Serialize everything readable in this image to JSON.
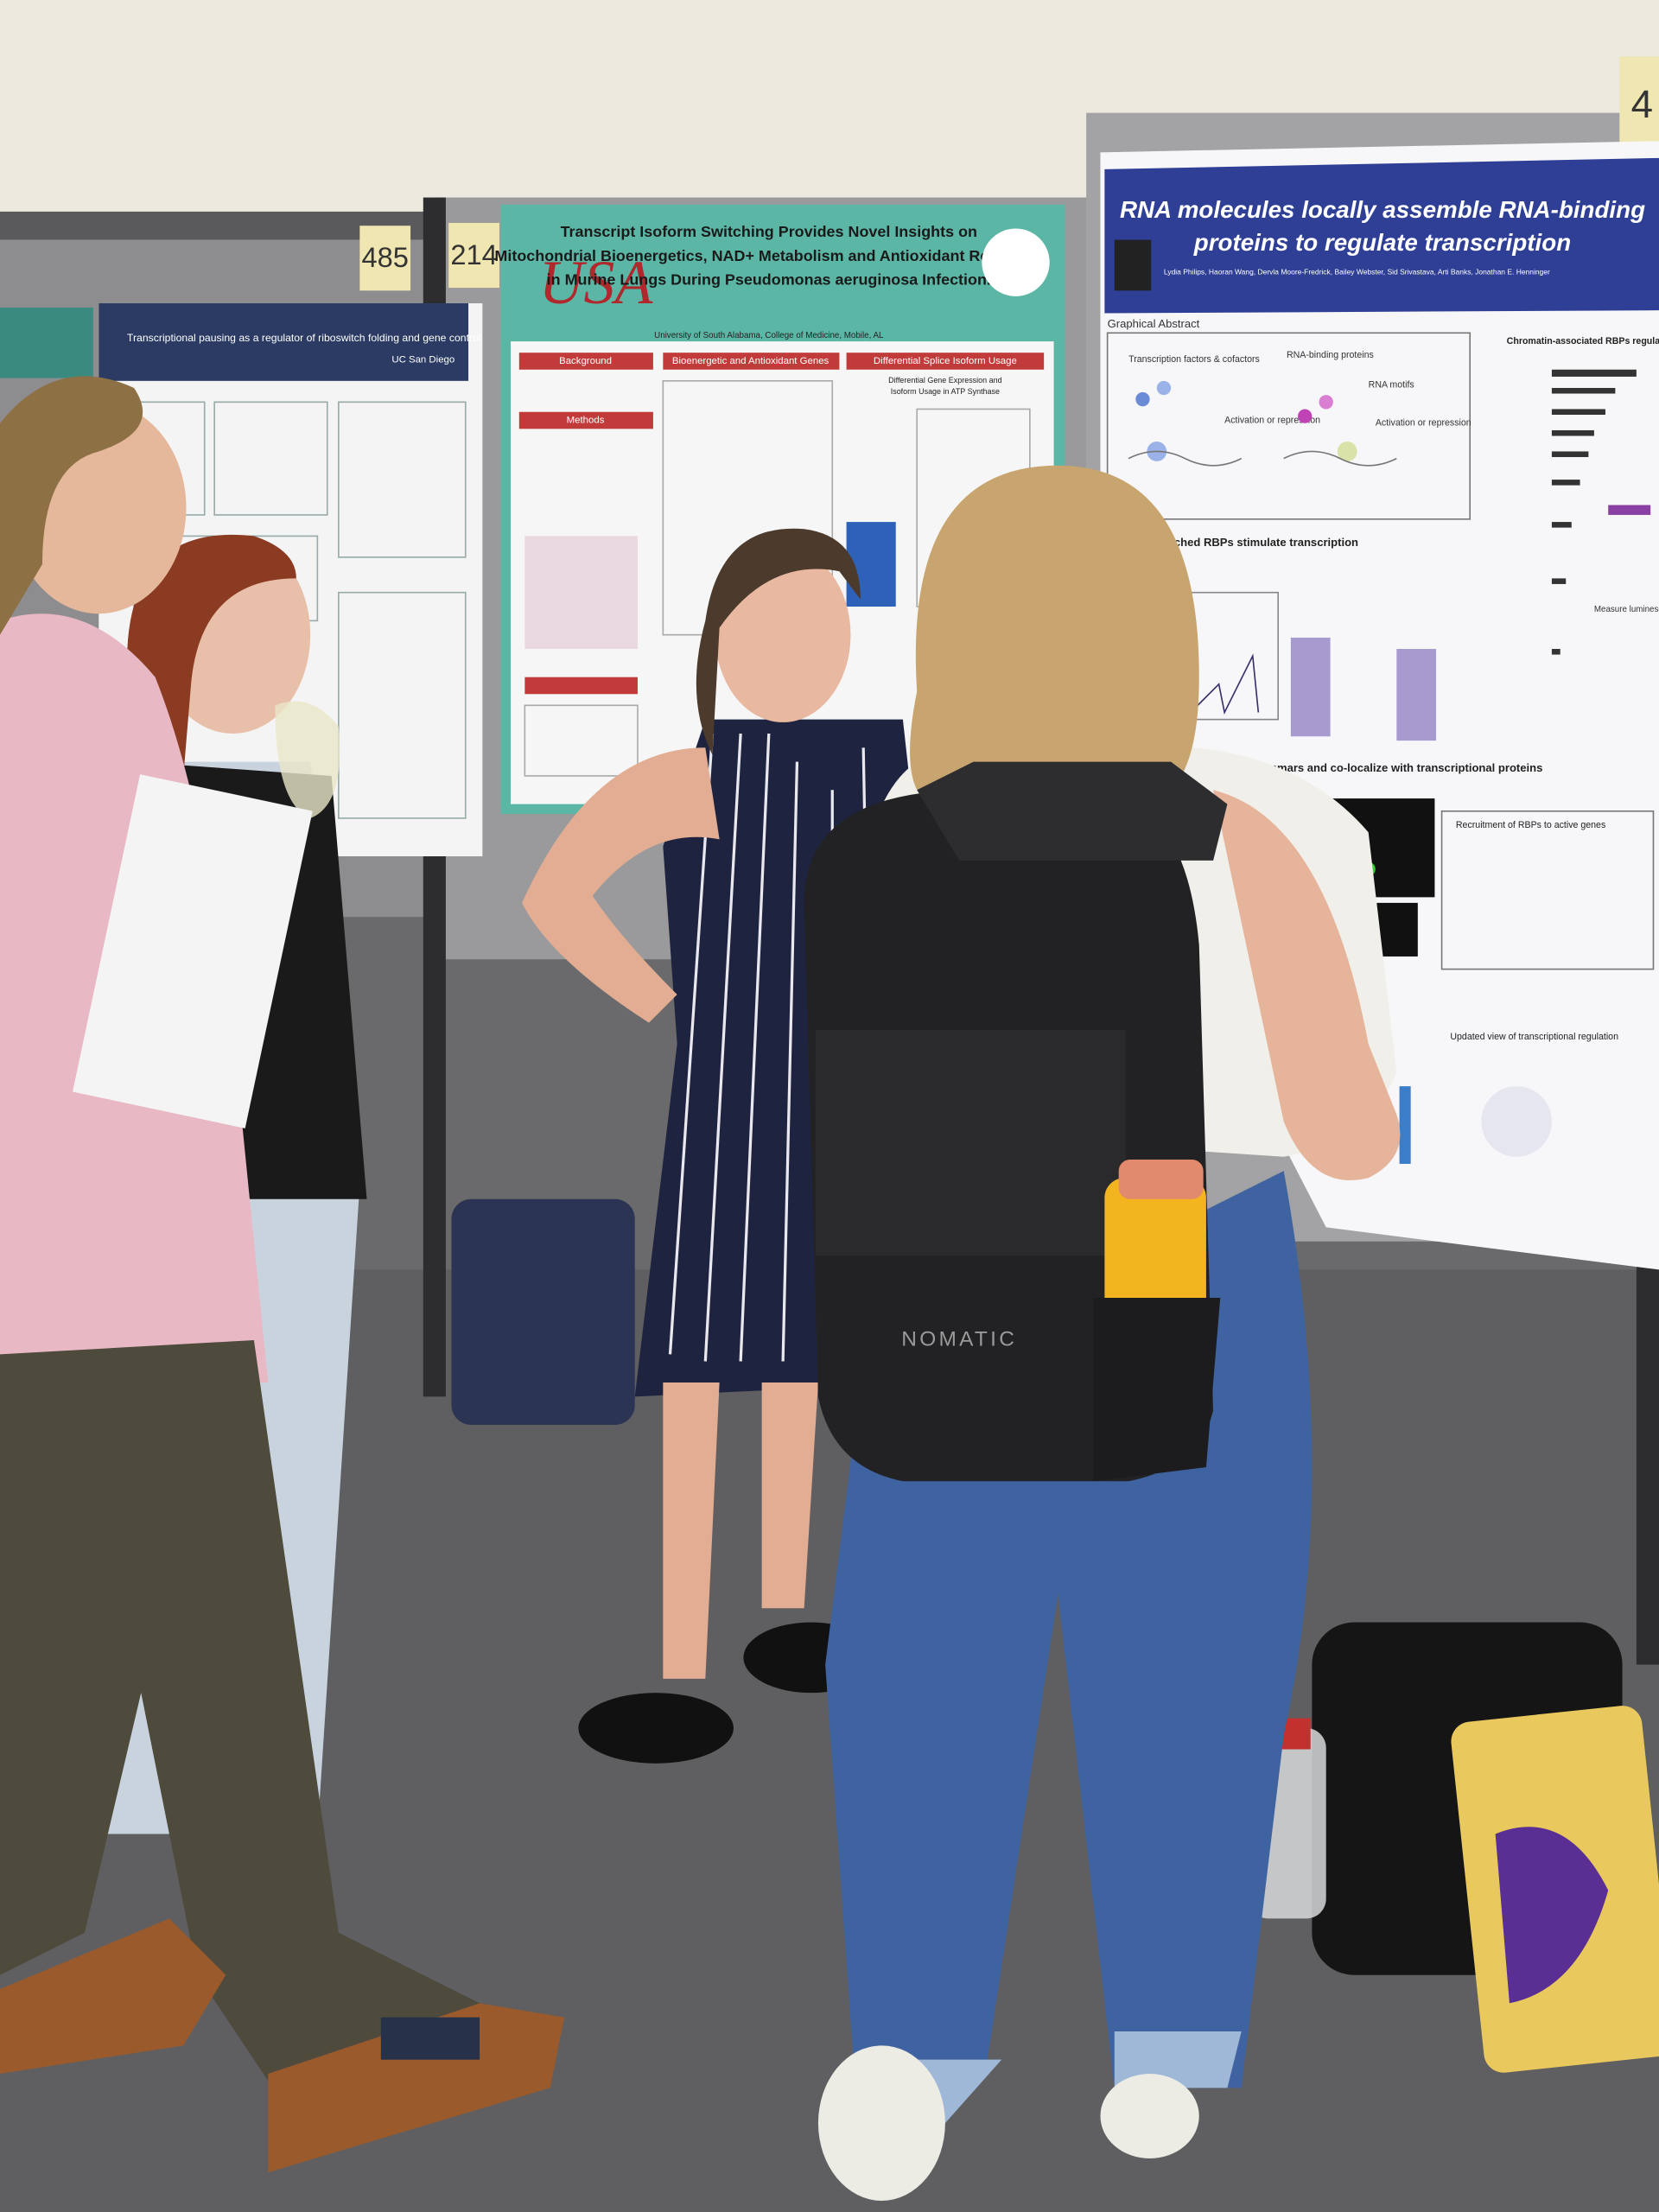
{
  "boards": {
    "left_number": "485",
    "middle_number": "214",
    "right_number": "4"
  },
  "poster_left": {
    "title": "Transcriptional pausing as a regulator of riboswitch folding and gene control",
    "logo": "UC San Diego"
  },
  "poster_middle": {
    "logo": "USA",
    "title_lines": [
      "Transcript Isoform Switching Provides Novel Insights on",
      "Mitochondrial Bioenergetics, NAD+ Metabolism and Antioxidant Response",
      "in Murine Lungs During Pseudomonas aeruginosa Infection."
    ],
    "affiliation": "University of South Alabama, College of Medicine, Mobile, AL",
    "sections": [
      "Background",
      "Bioenergetic and Antioxidant Genes",
      "Differential Splice Isoform Usage",
      "Methods"
    ],
    "subheading_lines": [
      "Differential Gene Expression and",
      "Isoform Usage in ATP Synthase"
    ]
  },
  "poster_right": {
    "title_lines": [
      "RNA molecules locally assemble RNA-binding",
      "proteins to regulate transcription"
    ],
    "authors": "Lydia Philips, Haoran Wang, Dervla Moore-Fredrick, Bailey Webster, Sid Srivastava, Arti Banks, Jonathan E. Henninger",
    "graphical_abstract": "Graphical Abstract",
    "chromatin_heading": "Chromatin-associated RBPs regulate reporter",
    "labels": [
      "Transcription factors & cofactors",
      "RNA-binding proteins",
      "RNA motifs",
      "Activation or repression",
      "Activation or repression"
    ],
    "section_stimulate": "-enriched RBPs stimulate transcription",
    "section_grammars": "istinct molecular grammars and co-localize with transcriptional proteins",
    "recruitment": "Recruitment of RBPs to active genes",
    "updated_view": "Updated view of transcriptional regulation",
    "measure": "Measure luminescence"
  },
  "backpack": {
    "brand": "NOMATIC"
  }
}
